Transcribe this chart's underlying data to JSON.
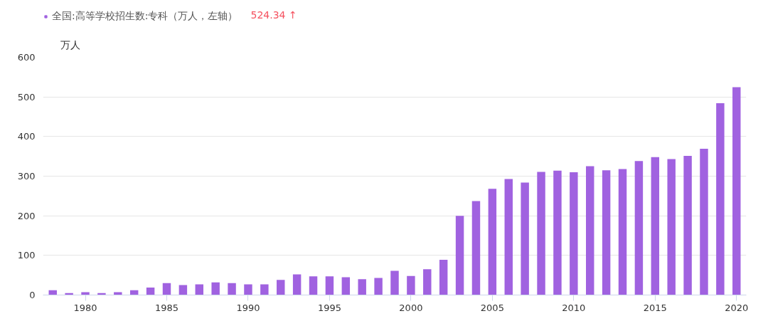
{
  "chart_data": {
    "type": "bar",
    "ylabel": "万人",
    "x": [
      1978,
      1979,
      1980,
      1981,
      1982,
      1983,
      1984,
      1985,
      1986,
      1987,
      1988,
      1989,
      1990,
      1991,
      1992,
      1993,
      1994,
      1995,
      1996,
      1997,
      1998,
      1999,
      2000,
      2001,
      2002,
      2003,
      2004,
      2005,
      2006,
      2007,
      2008,
      2009,
      2010,
      2011,
      2012,
      2013,
      2014,
      2015,
      2016,
      2017,
      2018,
      2019,
      2020
    ],
    "series": [
      {
        "name": "全国:高等学校招生数:专科（万人，左轴）",
        "color": "#a062e0",
        "values": [
          12,
          5,
          7,
          5,
          7,
          12,
          19,
          30,
          25,
          27,
          32,
          30,
          27,
          27,
          38,
          52,
          47,
          47,
          45,
          40,
          43,
          61,
          48,
          65,
          89,
          200,
          237,
          268,
          293,
          284,
          311,
          314,
          310,
          325,
          315,
          318,
          338,
          348,
          343,
          351,
          369,
          484,
          524.34
        ]
      }
    ],
    "annotations": [
      "524.34 ↑"
    ],
    "xlim": [
      1977.4,
      2020.6
    ],
    "xticks": [
      1980,
      1985,
      1990,
      1995,
      2000,
      2005,
      2010,
      2015,
      2020
    ],
    "ylim": [
      0,
      600
    ],
    "yticks": [
      0,
      100,
      200,
      300,
      400,
      500,
      600
    ],
    "grid": "y",
    "legend": "top left"
  }
}
